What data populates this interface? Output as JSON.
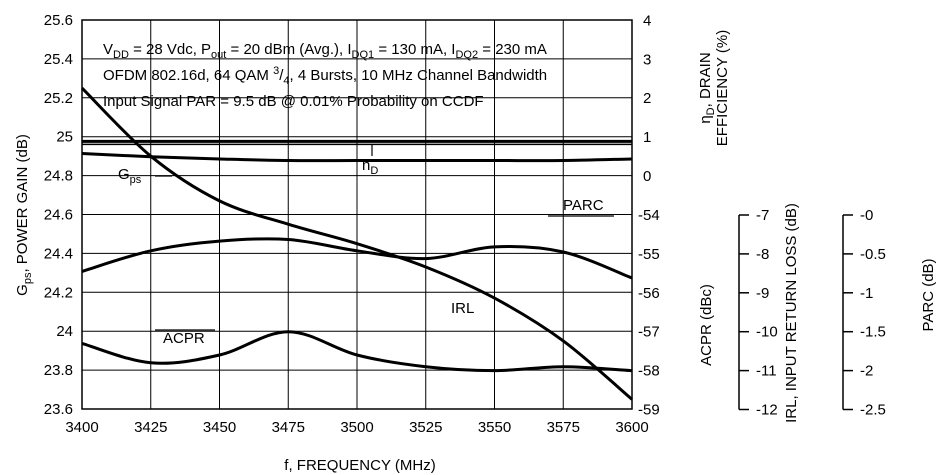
{
  "chart_data": {
    "type": "line",
    "x": [
      3400,
      3425,
      3450,
      3475,
      3500,
      3525,
      3550,
      3575,
      3600
    ],
    "xlim": [
      3400,
      3600
    ],
    "x_ticks": [
      "3400",
      "3425",
      "3450",
      "3475",
      "3500",
      "3525",
      "3550",
      "3575",
      "3600"
    ],
    "xlabel": "f, FREQUENCY (MHz)",
    "left_axis": {
      "ylim": [
        23.6,
        25.6
      ],
      "ticks": [
        "23.6",
        "23.8",
        "24",
        "24.2",
        "24.4",
        "24.6",
        "24.8",
        "25",
        "25.2",
        "25.4",
        "25.6"
      ],
      "label_main": "G",
      "label_sub": "ps",
      "label_rest": ", POWER GAIN (dB)"
    },
    "right_inner_axis": {
      "ticks_upper": [
        "4",
        "3",
        "2",
        "1",
        "0"
      ],
      "ticks_lower": [
        "-54",
        "-55",
        "-56",
        "-57",
        "-58",
        "-59"
      ],
      "label_drain_sym": "η",
      "label_drain_sub": "D",
      "label_drain_1": ", DRAIN",
      "label_drain_2": "EFFICIENCY (%)",
      "label_acpr": "ACPR (dBc)"
    },
    "irl_axis": {
      "ticks": [
        "-7",
        "-8",
        "-9",
        "-10",
        "-11",
        "-12"
      ],
      "label": "IRL, INPUT RETURN LOSS (dB)"
    },
    "parc_axis": {
      "ticks": [
        "-0",
        "-0.5",
        "-1",
        "-1.5",
        "-2",
        "-2.5"
      ],
      "label": "PARC (dB)"
    },
    "conditions": {
      "line1": {
        "v": "V",
        "v_sub": "DD",
        "v_rest": " = 28 Vdc, P",
        "p_sub": "out",
        "p_rest": " = 20 dBm (Avg.), I",
        "i1_sub": "DQ1",
        "i1_rest": " = 130 mA, I",
        "i2_sub": "DQ2",
        "i2_rest": " = 230 mA"
      },
      "line2": {
        "a": "OFDM 802.16d, 64 QAM ",
        "sup": "3",
        "b": "/",
        "sub": "4",
        "c": ", 4 Bursts, 10 MHz Channel Bandwidth"
      },
      "line3": "Input Signal PAR = 9.5 dB @ 0.01% Probability on CCDF"
    },
    "series": [
      {
        "name": "Gps",
        "label_main": "G",
        "label_sub": "ps",
        "axis": "gain_db",
        "values": [
          25.25,
          24.9,
          24.67,
          24.55,
          24.45,
          24.33,
          24.17,
          23.95,
          23.65
        ]
      },
      {
        "name": "hD",
        "label_main": "h",
        "label_sub": "D",
        "axis": "drain_efficiency_pct",
        "values": [
          0.85,
          0.85,
          0.85,
          0.85,
          0.85,
          0.85,
          0.85,
          0.85,
          0.85
        ]
      },
      {
        "name": "PARC",
        "label_main": "PARC",
        "axis": "parc_db",
        "values": [
          -0.79,
          -0.75,
          -0.72,
          -0.7,
          -0.7,
          -0.7,
          -0.7,
          -0.7,
          -0.72
        ]
      },
      {
        "name": "IRL",
        "label_main": "IRL",
        "axis": "irl_db",
        "values": [
          -8.45,
          -7.92,
          -7.67,
          -7.63,
          -7.92,
          -8.12,
          -7.82,
          -7.95,
          -8.62
        ]
      },
      {
        "name": "ACPR",
        "label_main": "ACPR",
        "axis": "acpr_dbc",
        "values": [
          -57.3,
          -57.8,
          -57.6,
          -57.0,
          -57.6,
          -57.9,
          -58.0,
          -57.9,
          -58.0
        ]
      }
    ]
  }
}
